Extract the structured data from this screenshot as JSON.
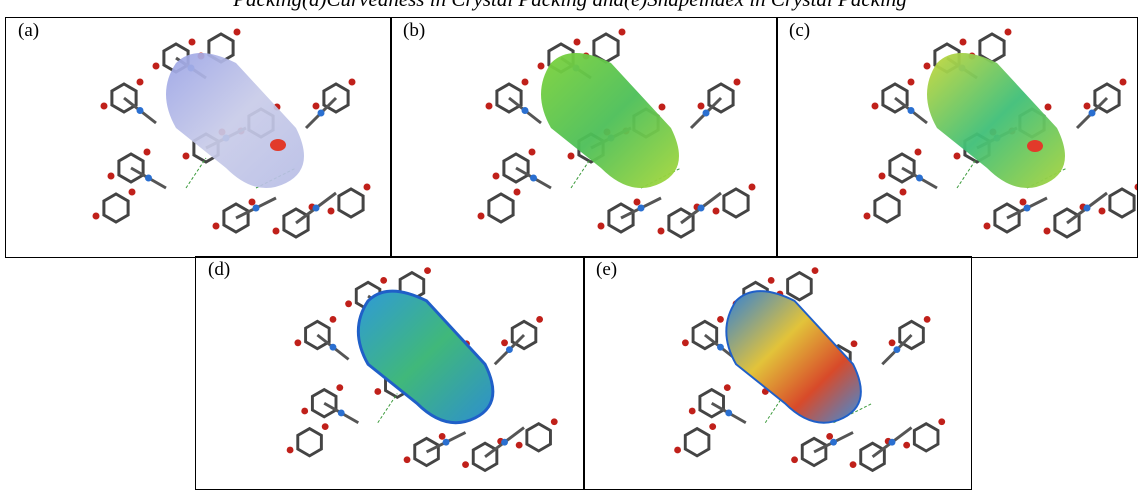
{
  "caption": "Packing(d)Curvedness in Crystal Packing and(e)Shapeindex in Crystal Packing",
  "panels": [
    {
      "label": "(a)"
    },
    {
      "label": "(b)"
    },
    {
      "label": "(c)"
    },
    {
      "label": "(d)"
    },
    {
      "label": "(e)"
    }
  ]
}
